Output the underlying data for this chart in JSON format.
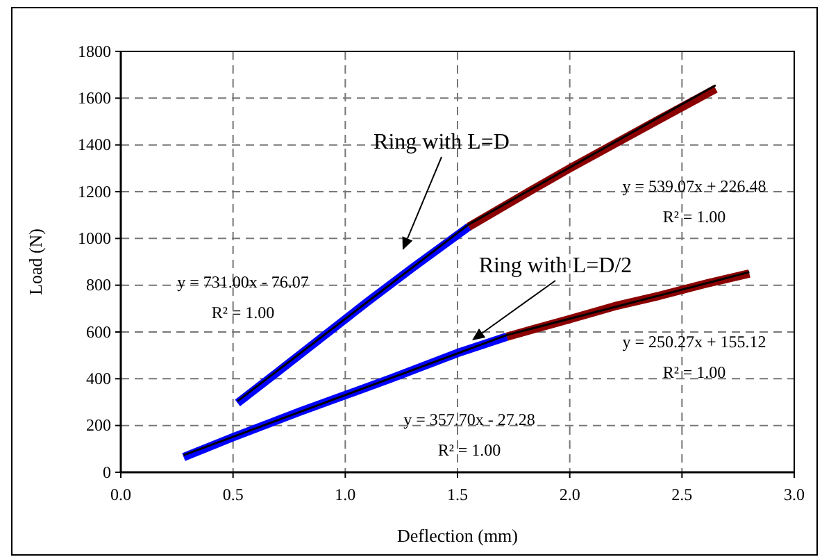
{
  "chart_data": {
    "type": "line",
    "xlabel": "Deflection (mm)",
    "ylabel": "Load (N)",
    "xlim": [
      0,
      3
    ],
    "xticks": [
      {
        "value": 0,
        "label": "0.0"
      },
      {
        "value": 0.5,
        "label": "0.5"
      },
      {
        "value": 1,
        "label": "1.0"
      },
      {
        "value": 1.5,
        "label": "1.5"
      },
      {
        "value": 2,
        "label": "2.0"
      },
      {
        "value": 2.5,
        "label": "2.5"
      },
      {
        "value": 3,
        "label": "3.0"
      }
    ],
    "ylim": [
      0,
      1800
    ],
    "yticks": [
      0,
      200,
      400,
      600,
      800,
      1000,
      1200,
      1400,
      1600,
      1800
    ],
    "grid": true,
    "series": [
      {
        "color": "#0000ff",
        "x": [
          0.52,
          0.7,
          0.9,
          1.1,
          1.3,
          1.55
        ],
        "values": [
          296,
          430,
          580,
          730,
          875,
          1050
        ]
      },
      {
        "color": "#8b0000",
        "x": [
          1.55,
          1.8,
          2.0,
          2.2,
          2.4,
          2.65
        ],
        "values": [
          1050,
          1190,
          1300,
          1405,
          1510,
          1640
        ]
      },
      {
        "color": "#0000ff",
        "x": [
          0.28,
          0.5,
          0.8,
          1.0,
          1.2,
          1.5,
          1.72
        ],
        "values": [
          65,
          150,
          260,
          330,
          400,
          510,
          580
        ]
      },
      {
        "color": "#8b0000",
        "x": [
          1.72,
          2.0,
          2.2,
          2.4,
          2.6,
          2.8
        ],
        "values": [
          580,
          655,
          710,
          755,
          805,
          850
        ]
      },
      {
        "color": "#000000",
        "x": [
          0.52,
          1.55,
          2.65
        ],
        "values": [
          304,
          1060,
          1655
        ]
      },
      {
        "color": "#000000",
        "x": [
          0.28,
          1.72,
          2.8
        ],
        "values": [
          73,
          587,
          856
        ]
      }
    ],
    "annotations": [
      "Ring with L=D",
      "Ring with L=D/2",
      "y = 539.07x + 226.48",
      "R² = 1.00",
      "y = 731.00x - 76.07",
      "R² = 1.00",
      "y = 357.70x - 27.28",
      "R² = 1.00",
      "y = 250.27x + 155.12",
      "R² = 1.00"
    ]
  }
}
